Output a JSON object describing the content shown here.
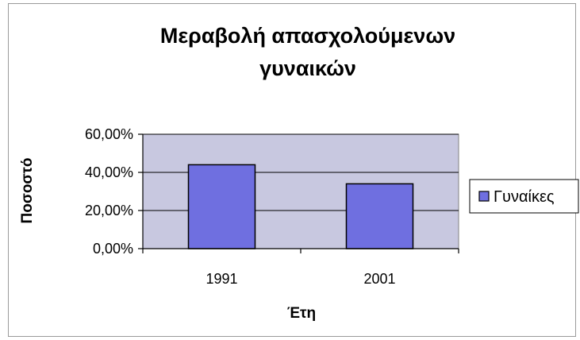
{
  "chart_data": {
    "type": "bar",
    "title_lines": [
      "Μεραβολή απασχολούμενων",
      "γυναικών"
    ],
    "xlabel": "Έτη",
    "ylabel": "Ποσοστό",
    "categories": [
      "1991",
      "2001"
    ],
    "series": [
      {
        "name": "Γυναίκες",
        "values": [
          0.44,
          0.34
        ],
        "color": "#6f6fe0"
      }
    ],
    "ylim": [
      0,
      0.6
    ],
    "yticks": [
      0,
      0.2,
      0.4,
      0.6
    ],
    "ytick_labels": [
      "0,00%",
      "20,00%",
      "40,00%",
      "60,00%"
    ],
    "grid": true,
    "plot_background": "#c8c8e0",
    "legend_position": "right"
  }
}
